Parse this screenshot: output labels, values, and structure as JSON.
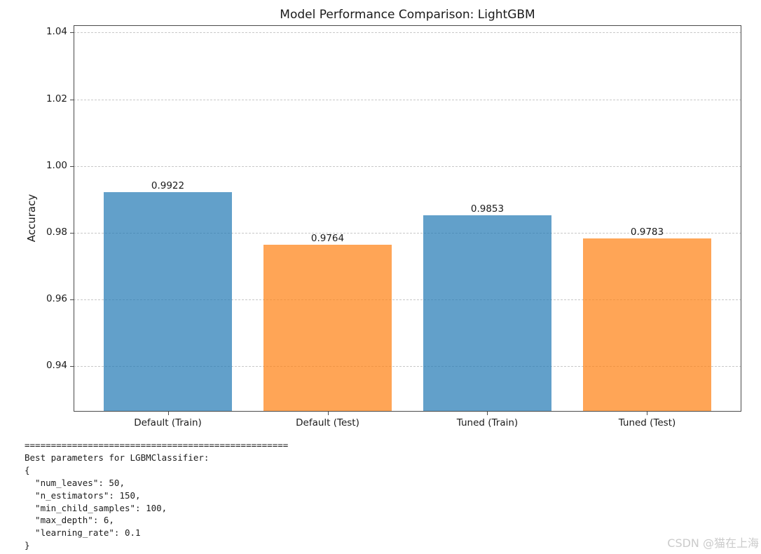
{
  "chart_data": {
    "type": "bar",
    "title": "Model Performance Comparison: LightGBM",
    "xlabel": "",
    "ylabel": "Accuracy",
    "categories": [
      "Default (Train)",
      "Default (Test)",
      "Tuned (Train)",
      "Tuned (Test)"
    ],
    "values": [
      0.9922,
      0.9764,
      0.9853,
      0.9783
    ],
    "bar_labels": [
      "0.9922",
      "0.9764",
      "0.9853",
      "0.9783"
    ],
    "series_colors": [
      "#1f77b4",
      "#ff7f0e",
      "#1f77b4",
      "#ff7f0e"
    ],
    "bar_alpha": 0.7,
    "bar_width_fraction": 0.8,
    "ylim": [
      0.9264,
      1.0422
    ],
    "yticks": [
      0.94,
      0.96,
      0.98,
      1.0,
      1.02,
      1.04
    ],
    "ytick_labels": [
      "0.94",
      "0.96",
      "0.98",
      "1.00",
      "1.02",
      "1.04"
    ],
    "grid": "horizontal-dashed",
    "legend": "none"
  },
  "colors": {
    "bar_blue": "#1f77b4",
    "bar_orange": "#ff7f0e",
    "gridline": "#c8c8c8",
    "spine": "#4a4a4a",
    "text": "#1a1a1a",
    "watermark": "#cbcbcb"
  },
  "console": {
    "lines": [
      "==================================================",
      "Best parameters for LGBMClassifier:",
      "{",
      "  \"num_leaves\": 50,",
      "  \"n_estimators\": 150,",
      "  \"min_child_samples\": 100,",
      "  \"max_depth\": 6,",
      "  \"learning_rate\": 0.1",
      "}"
    ]
  },
  "watermark": {
    "text": "CSDN @猫在上海"
  }
}
